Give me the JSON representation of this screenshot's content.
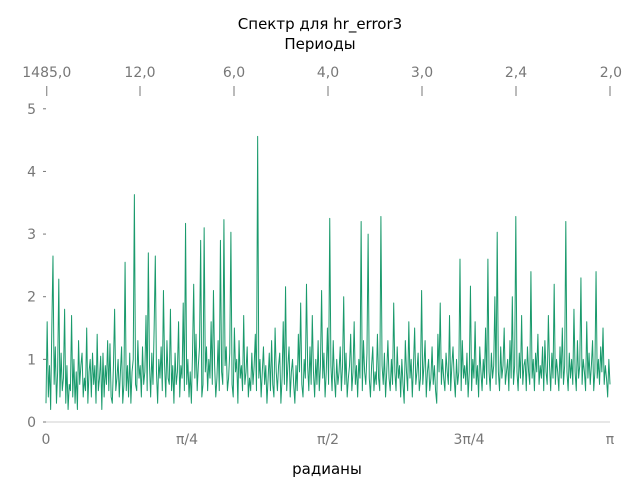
{
  "chart_data": {
    "type": "line",
    "title": "Спектр для hr_error3",
    "top_axis_label": "Периоды",
    "xlabel": "радианы",
    "ylabel": "",
    "xlim": [
      0,
      3.14159
    ],
    "ylim": [
      0,
      5.3
    ],
    "color": "#1a9a6c",
    "y_ticks": [
      {
        "value": 0,
        "label": "0"
      },
      {
        "value": 1,
        "label": "1"
      },
      {
        "value": 2,
        "label": "2"
      },
      {
        "value": 3,
        "label": "3"
      },
      {
        "value": 4,
        "label": "4"
      },
      {
        "value": 5,
        "label": "5"
      }
    ],
    "x_ticks": [
      {
        "value": 0,
        "label": "0"
      },
      {
        "value": 0.7854,
        "label": "π/4"
      },
      {
        "value": 1.5708,
        "label": "π/2"
      },
      {
        "value": 2.3562,
        "label": "3π/4"
      },
      {
        "value": 3.1416,
        "label": "π"
      }
    ],
    "top_ticks": [
      {
        "value": 0.0042,
        "label": "1485,0"
      },
      {
        "value": 0.5236,
        "label": "12,0"
      },
      {
        "value": 1.0472,
        "label": "6,0"
      },
      {
        "value": 1.5708,
        "label": "4,0"
      },
      {
        "value": 2.0944,
        "label": "3,0"
      },
      {
        "value": 2.618,
        "label": "2,4"
      },
      {
        "value": 3.1416,
        "label": "2,0"
      }
    ],
    "series": [
      {
        "values": [
          0.3,
          1.6,
          0.4,
          0.9,
          0.2,
          1.5,
          2.65,
          0.6,
          1.2,
          0.3,
          0.8,
          2.28,
          0.4,
          1.1,
          0.5,
          0.7,
          1.8,
          0.3,
          0.9,
          0.2,
          0.6,
          0.5,
          1.7,
          0.4,
          1.0,
          0.3,
          0.8,
          0.2,
          1.3,
          0.6,
          0.9,
          1.1,
          0.4,
          0.7,
          0.5,
          1.5,
          0.3,
          0.8,
          1.0,
          0.4,
          1.1,
          0.6,
          0.9,
          0.3,
          1.4,
          0.5,
          0.7,
          1.05,
          0.2,
          1.1,
          0.4,
          0.9,
          0.6,
          1.3,
          0.5,
          1.25,
          0.4,
          0.3,
          0.9,
          1.8,
          0.5,
          0.7,
          1.0,
          0.4,
          0.8,
          1.2,
          0.3,
          0.6,
          2.55,
          0.5,
          0.9,
          0.4,
          1.1,
          0.3,
          0.8,
          1.0,
          3.63,
          0.6,
          0.5,
          1.3,
          0.7,
          0.9,
          0.4,
          1.2,
          0.6,
          0.8,
          1.7,
          0.5,
          2.7,
          0.9,
          0.4,
          1.1,
          0.6,
          1.5,
          2.65,
          0.8,
          0.3,
          1.0,
          0.7,
          1.2,
          0.5,
          2.1,
          0.9,
          0.4,
          1.3,
          0.7,
          0.6,
          1.8,
          0.5,
          0.9,
          0.3,
          1.1,
          0.6,
          0.8,
          1.6,
          0.4,
          0.9,
          0.7,
          1.9,
          0.5,
          3.17,
          0.6,
          1.0,
          0.4,
          0.8,
          0.3,
          1.1,
          2.2,
          0.7,
          1.4,
          0.5,
          0.9,
          1.2,
          2.9,
          0.4,
          0.6,
          3.1,
          0.8,
          1.2,
          0.5,
          1.0,
          0.7,
          1.6,
          0.6,
          2.1,
          0.9,
          0.4,
          0.7,
          1.3,
          0.5,
          2.9,
          0.8,
          0.6,
          3.23,
          0.9,
          1.2,
          0.5,
          0.7,
          1.1,
          3.03,
          0.6,
          0.4,
          1.5,
          0.8,
          1.0,
          0.3,
          1.3,
          0.7,
          0.9,
          0.5,
          1.7,
          0.6,
          0.8,
          1.2,
          0.4,
          0.7,
          0.5,
          1.1,
          0.6,
          0.9,
          1.4,
          0.5,
          4.56,
          0.7,
          1.0,
          0.4,
          0.8,
          1.2,
          0.6,
          0.9,
          0.3,
          0.7,
          1.1,
          0.5,
          1.3,
          0.6,
          0.4,
          1.5,
          0.8,
          0.5,
          0.9,
          1.1,
          0.3,
          0.7,
          1.6,
          0.6,
          2.16,
          0.5,
          0.9,
          1.2,
          0.4,
          0.8,
          1.0,
          0.6,
          0.3,
          0.9,
          0.5,
          1.4,
          0.8,
          1.9,
          0.6,
          0.4,
          1.0,
          0.7,
          2.2,
          0.9,
          0.5,
          1.2,
          0.6,
          1.7,
          0.8,
          0.4,
          1.0,
          0.6,
          1.3,
          0.5,
          0.9,
          2.1,
          0.7,
          1.1,
          0.4,
          0.8,
          1.5,
          0.6,
          3.25,
          0.9,
          0.5,
          1.3,
          0.7,
          0.4,
          1.0,
          0.6,
          0.8,
          1.2,
          0.5,
          0.9,
          2.0,
          0.6,
          1.1,
          0.4,
          0.7,
          0.9,
          1.4,
          0.5,
          0.8,
          1.6,
          0.6,
          0.9,
          0.4,
          1.0,
          0.7,
          3.2,
          0.5,
          1.3,
          0.8,
          0.6,
          1.1,
          3.0,
          0.7,
          0.4,
          0.9,
          1.2,
          0.5,
          0.8,
          0.6,
          1.4,
          0.7,
          0.5,
          3.28,
          0.9,
          0.6,
          1.1,
          0.4,
          0.8,
          1.3,
          0.7,
          0.5,
          1.0,
          0.6,
          1.9,
          0.8,
          0.5,
          1.2,
          0.7,
          0.9,
          0.4,
          1.0,
          0.6,
          0.3,
          1.3,
          0.8,
          0.5,
          1.6,
          0.7,
          1.0,
          0.4,
          0.9,
          1.5,
          0.6,
          0.8,
          1.1,
          0.5,
          0.7,
          2.1,
          0.6,
          0.9,
          1.3,
          0.4,
          0.8,
          1.0,
          0.5,
          0.7,
          1.2,
          0.6,
          0.9,
          0.5,
          0.3,
          1.4,
          0.8,
          1.9,
          0.6,
          1.0,
          0.7,
          0.5,
          1.1,
          0.8,
          0.6,
          1.7,
          0.5,
          0.9,
          1.2,
          0.7,
          0.4,
          1.0,
          0.6,
          0.8,
          2.6,
          0.5,
          1.3,
          0.7,
          0.9,
          0.6,
          1.1,
          0.4,
          0.8,
          2.17,
          0.5,
          1.0,
          0.7,
          1.6,
          0.6,
          0.9,
          0.4,
          1.2,
          0.8,
          0.5,
          1.0,
          0.7,
          1.5,
          0.6,
          2.6,
          0.8,
          0.5,
          1.1,
          0.7,
          0.9,
          2.0,
          0.6,
          3.03,
          0.8,
          0.5,
          1.2,
          0.7,
          0.9,
          1.5,
          0.6,
          0.8,
          1.0,
          0.5,
          1.3,
          0.7,
          2.0,
          0.6,
          0.9,
          3.28,
          0.8,
          0.5,
          1.1,
          0.7,
          1.7,
          0.6,
          0.9,
          1.0,
          0.5,
          1.2,
          0.8,
          0.6,
          2.4,
          0.7,
          1.0,
          0.5,
          1.1,
          0.8,
          1.4,
          0.6,
          0.9,
          0.7,
          1.2,
          0.5,
          1.3,
          0.8,
          0.6,
          1.7,
          0.9,
          0.5,
          1.1,
          0.7,
          2.2,
          0.6,
          1.0,
          0.8,
          0.5,
          1.2,
          0.7,
          1.5,
          0.6,
          0.9,
          3.2,
          0.8,
          0.5,
          1.1,
          0.7,
          1.0,
          0.6,
          1.8,
          0.8,
          0.5,
          1.3,
          0.7,
          0.9,
          2.3,
          0.6,
          1.0,
          0.8,
          0.5,
          1.6,
          0.7,
          1.1,
          0.6,
          0.9,
          1.3,
          0.5,
          0.8,
          2.4,
          0.7,
          1.0,
          0.6,
          1.2,
          0.8,
          1.5,
          0.6,
          0.9,
          0.7,
          0.4,
          1.0,
          0.6
        ]
      }
    ]
  }
}
